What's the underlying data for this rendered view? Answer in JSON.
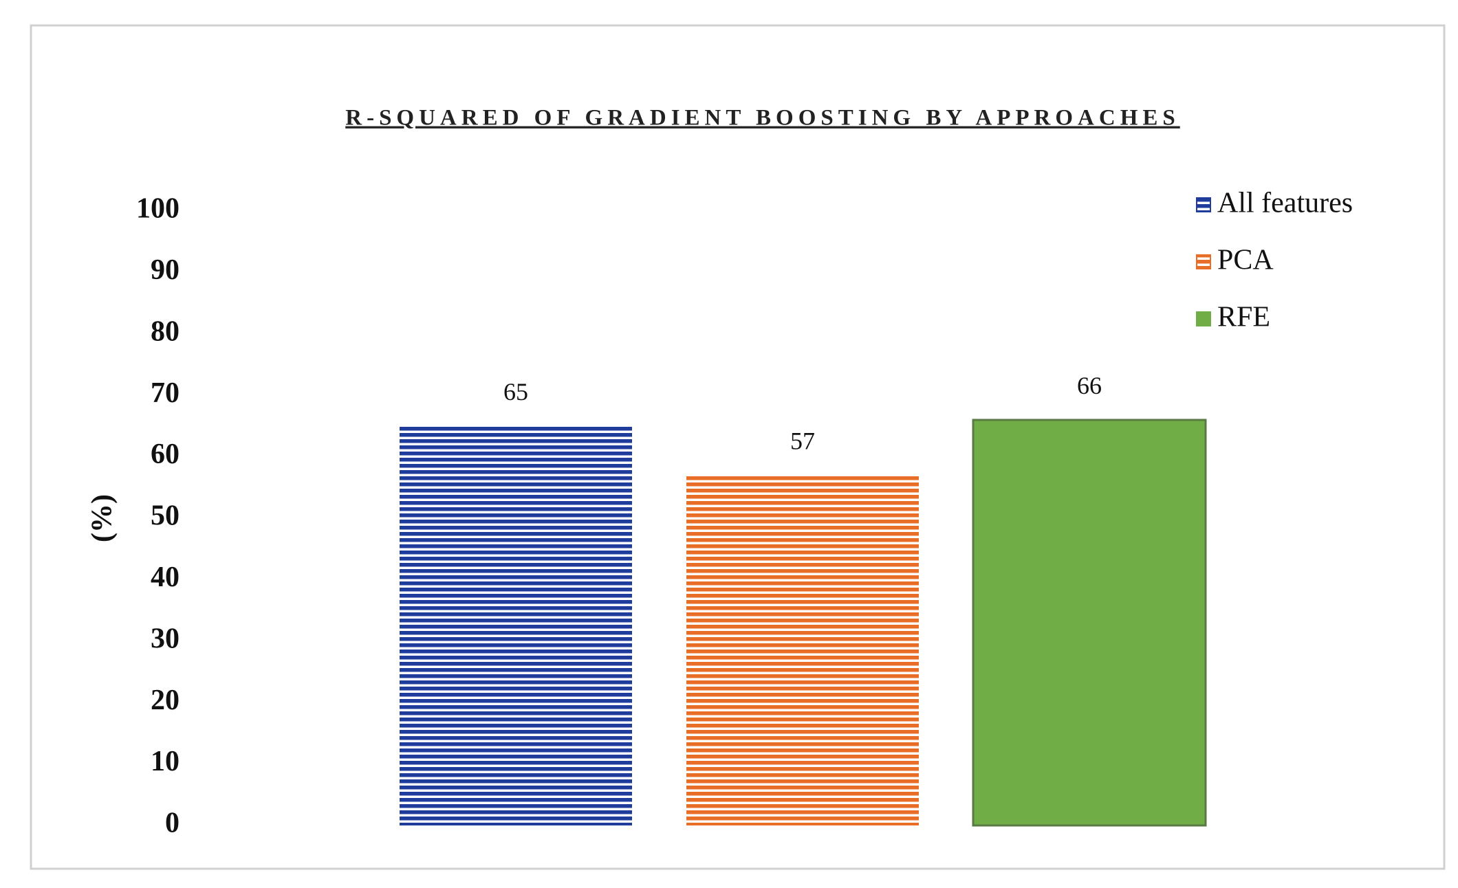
{
  "chart_data": {
    "type": "bar",
    "title": "R-SQUARED OF GRADIENT BOOSTING BY APPROACHES",
    "y_label": "(%)",
    "categories": [
      null
    ],
    "series": [
      {
        "name": "All features",
        "color": "#1f3c9c",
        "pattern": "horizontal-lines",
        "values": [
          65
        ]
      },
      {
        "name": "PCA",
        "color": "#e86e27",
        "pattern": "horizontal-lines",
        "values": [
          57
        ]
      },
      {
        "name": "RFE",
        "color": "#70ad47",
        "pattern": "solid",
        "values": [
          66
        ]
      }
    ],
    "ylim": [
      0,
      100
    ],
    "yticks": [
      0,
      10,
      20,
      30,
      40,
      50,
      60,
      70,
      80,
      90,
      100
    ],
    "grid": false,
    "legend": "top-right"
  }
}
